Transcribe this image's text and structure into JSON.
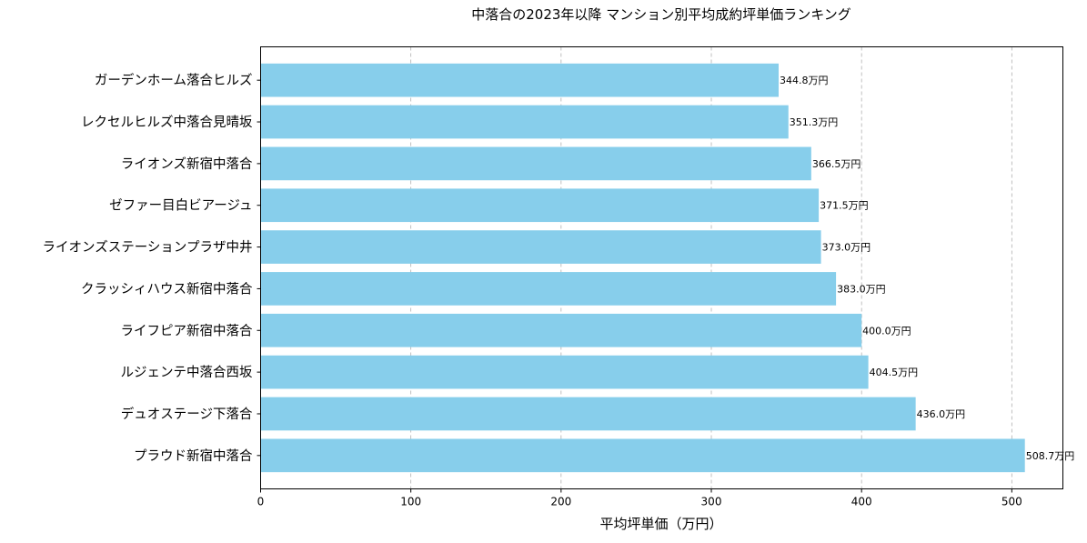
{
  "chart_data": {
    "type": "bar",
    "orientation": "horizontal",
    "title": "中落合の2023年以降 マンション別平均成約坪単価ランキング",
    "xlabel": "平均坪単価（万円）",
    "ylabel": "",
    "xlim": [
      0,
      534
    ],
    "xticks": [
      0,
      100,
      200,
      300,
      400,
      500
    ],
    "grid": "x-dashed",
    "bar_color": "#87CEEB",
    "value_suffix": "万円",
    "categories": [
      "ガーデンホーム落合ヒルズ",
      "レクセルヒルズ中落合見晴坂",
      "ライオンズ新宿中落合",
      "ゼファー目白ビアージュ",
      "ライオンズステーションプラザ中井",
      "クラッシィハウス新宿中落合",
      "ライフピア新宿中落合",
      "ルジェンテ中落合西坂",
      "デュオステージ下落合",
      "プラウド新宿中落合"
    ],
    "values": [
      344.8,
      351.3,
      366.5,
      371.5,
      373.0,
      383.0,
      400.0,
      404.5,
      436.0,
      508.7
    ],
    "data_labels": [
      "344.8万円",
      "351.3万円",
      "366.5万円",
      "371.5万円",
      "373.0万円",
      "383.0万円",
      "400.0万円",
      "404.5万円",
      "436.0万円",
      "508.7万円"
    ]
  }
}
